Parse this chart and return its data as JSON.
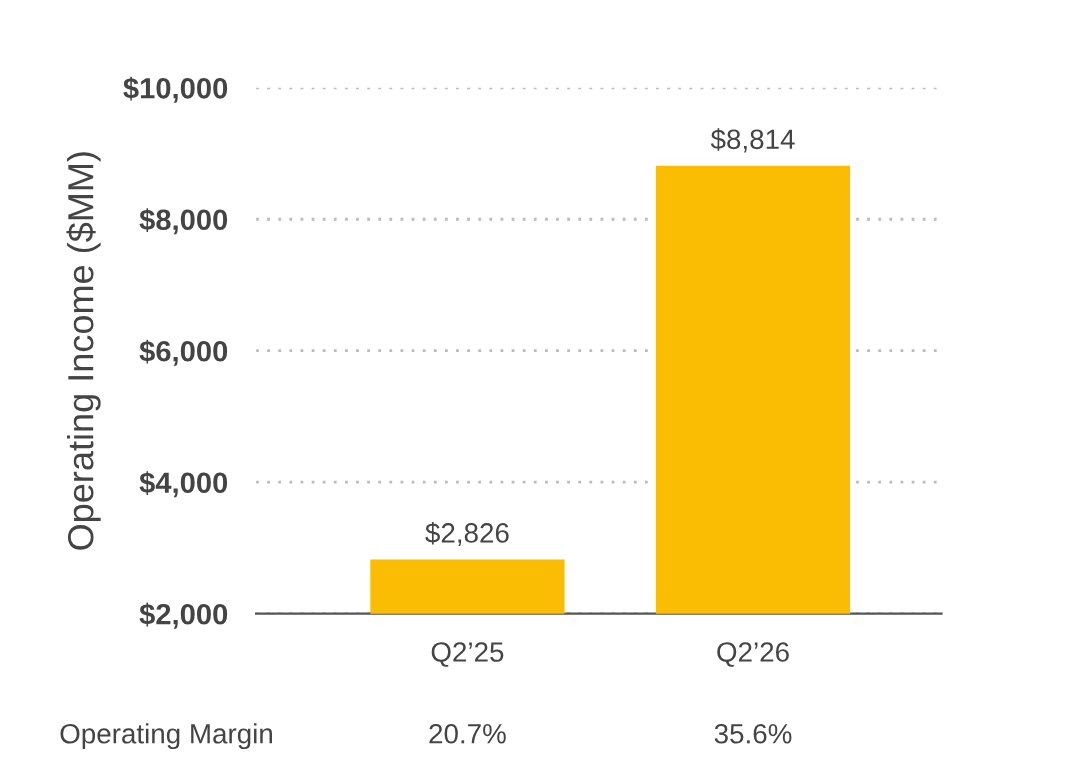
{
  "chart_data": {
    "type": "bar",
    "ylabel": "Operating Income ($MM)",
    "categories": [
      "Q2’25",
      "Q2’26"
    ],
    "values": [
      2826,
      8814
    ],
    "color": "#fbbc04",
    "value_labels": [
      "$2,826",
      "$8,814"
    ],
    "ylim": [
      2000,
      10000
    ],
    "yticks": [
      {
        "value": 2000,
        "label": "$2,000"
      },
      {
        "value": 4000,
        "label": "$4,000"
      },
      {
        "value": 6000,
        "label": "$6,000"
      },
      {
        "value": 8000,
        "label": "$8,000"
      },
      {
        "value": 10000,
        "label": "$10,000"
      }
    ],
    "grid": "y",
    "annotations": [
      "Operating Margin",
      "20.7%",
      "35.6%"
    ]
  }
}
